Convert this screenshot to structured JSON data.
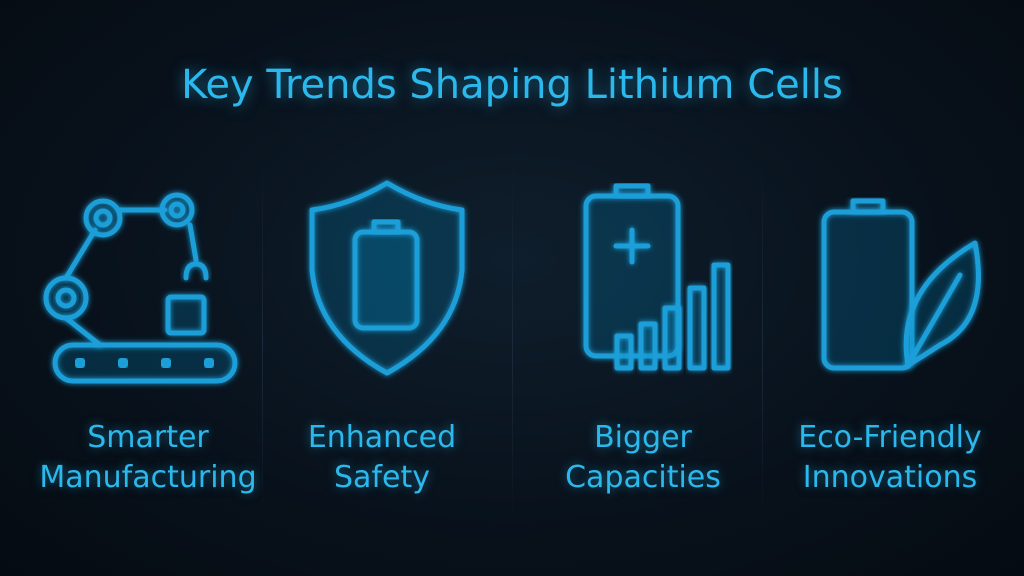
{
  "title": "Key Trends Shaping Lithium Cells",
  "items": [
    {
      "lines": [
        "Smarter",
        "Manufacturing"
      ]
    },
    {
      "lines": [
        "Enhanced",
        "Safety"
      ]
    },
    {
      "lines": [
        "Bigger",
        "Capacities"
      ]
    },
    {
      "lines": [
        "Eco-Friendly",
        "Innovations"
      ]
    }
  ]
}
